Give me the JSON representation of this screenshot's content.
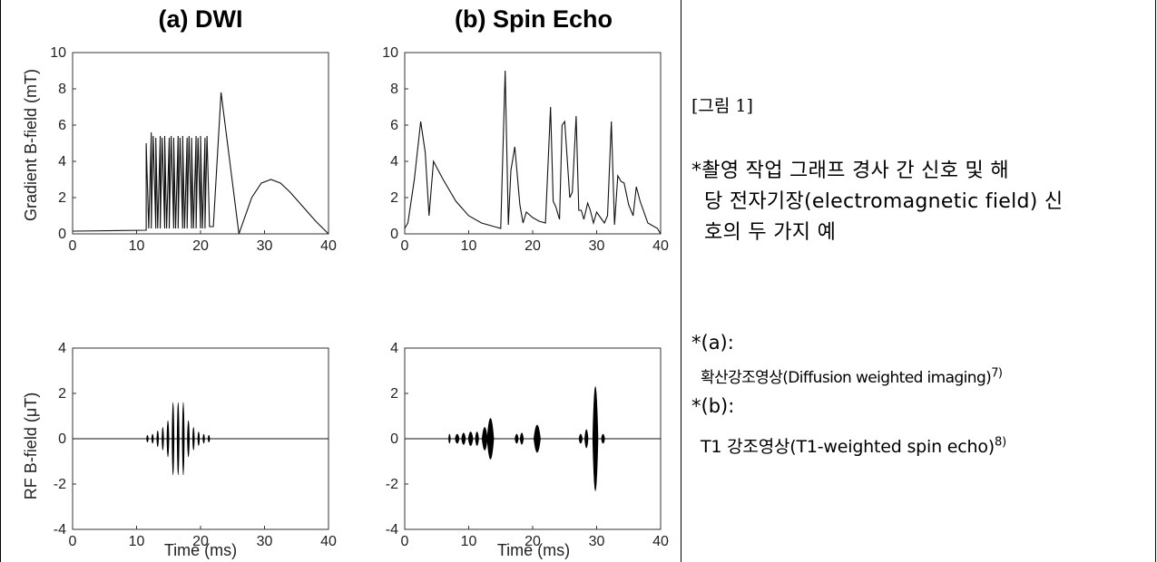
{
  "figure": {
    "label": "[그림 1]",
    "caption_line1": "*촬영 작업 그래프 경사 간 신호 및 해",
    "caption_line2": "당 전자기장(electromagnetic field) 신",
    "caption_line3": "호의 두 가지 예",
    "note_a_label": "*(a):",
    "note_a_text": "확산강조영상(Diffusion weighted imaging)",
    "note_a_ref": "7)",
    "note_b_label": "*(b):",
    "note_b_text": "T1 강조영상(T1-weighted spin echo)",
    "note_b_ref": "8)"
  },
  "chart_data": [
    {
      "type": "line",
      "title": "(a)  DWI",
      "ylabel": "Gradient B-field (mT)",
      "xlabel": "",
      "xlim": [
        0,
        40
      ],
      "ylim": [
        0,
        10
      ],
      "xticks": [
        "0",
        "10",
        "20",
        "30",
        "40"
      ],
      "yticks": [
        "0",
        "2",
        "4",
        "6",
        "8",
        "10"
      ],
      "series": [
        {
          "x": [
            0,
            11.5,
            11.5,
            11.9,
            12.3,
            12.3,
            12.6,
            13.0,
            13.0,
            13.3,
            13.7,
            13.7,
            14.0,
            14.4,
            14.4,
            14.7,
            15.1,
            15.1,
            15.4,
            15.8,
            15.8,
            16.1,
            16.5,
            16.5,
            16.8,
            17.2,
            17.2,
            17.5,
            17.9,
            17.9,
            18.2,
            18.6,
            18.6,
            18.9,
            19.3,
            19.3,
            19.6,
            20.0,
            20.0,
            20.3,
            20.7,
            20.7,
            21.0,
            21.4,
            22.0,
            23.2,
            26.0,
            28.0,
            29.5,
            31.0,
            32.5,
            34.0,
            36.0,
            38.0,
            40.0
          ],
          "y": [
            0.15,
            0.2,
            5.0,
            0.3,
            5.6,
            0.3,
            5.4,
            0.3,
            5.3,
            0.3,
            5.4,
            0.3,
            5.3,
            0.3,
            5.4,
            0.3,
            5.3,
            0.3,
            5.4,
            0.3,
            5.3,
            0.3,
            5.4,
            0.3,
            5.3,
            0.3,
            5.4,
            0.3,
            5.3,
            0.3,
            5.4,
            0.3,
            5.3,
            0.3,
            5.4,
            0.3,
            5.3,
            0.3,
            5.4,
            0.3,
            5.3,
            0.3,
            5.4,
            0.4,
            0.4,
            7.8,
            0.0,
            2.0,
            2.8,
            3.0,
            2.8,
            2.3,
            1.5,
            0.7,
            0.0
          ]
        }
      ]
    },
    {
      "type": "line",
      "title": "(b)  Spin Echo",
      "ylabel": "",
      "xlabel": "",
      "xlim": [
        0,
        40
      ],
      "ylim": [
        0,
        10
      ],
      "xticks": [
        "0",
        "10",
        "20",
        "30",
        "40"
      ],
      "yticks": [
        "0",
        "2",
        "4",
        "6",
        "8",
        "10"
      ],
      "series": [
        {
          "x": [
            0,
            0.5,
            1.5,
            2.5,
            3.2,
            3.8,
            4.5,
            6,
            8,
            10,
            12,
            14,
            15,
            15.7,
            16.2,
            16.6,
            17.2,
            18,
            18.5,
            19,
            20,
            21,
            22,
            22.8,
            23.2,
            23.6,
            24.2,
            24.6,
            25,
            25.8,
            26.2,
            26.8,
            27.2,
            27.6,
            28,
            28.6,
            29,
            29.5,
            30,
            30.6,
            31.2,
            31.7,
            32.3,
            32.8,
            33.3,
            33.8,
            34.3,
            35,
            35.7,
            36.2,
            36.8,
            38,
            39.5,
            40
          ],
          "y": [
            0.3,
            0.6,
            3.0,
            6.2,
            4.5,
            1.0,
            4.0,
            3.0,
            1.8,
            1.0,
            0.6,
            0.4,
            0.3,
            9.0,
            0.5,
            3.5,
            4.8,
            1.6,
            0.6,
            1.2,
            0.9,
            0.7,
            0.6,
            7.0,
            1.8,
            1.5,
            0.8,
            6.0,
            6.2,
            2.0,
            2.3,
            6.5,
            1.3,
            1.3,
            0.8,
            1.7,
            1.3,
            0.6,
            1.2,
            0.9,
            0.6,
            1.0,
            6.2,
            0.5,
            3.2,
            2.9,
            2.8,
            1.6,
            1.0,
            2.6,
            1.8,
            0.6,
            0.3,
            0.0
          ]
        }
      ]
    },
    {
      "type": "line",
      "title": "",
      "ylabel": "RF B-field (μT)",
      "xlabel": "Time (ms)",
      "xlim": [
        0,
        40
      ],
      "ylim": [
        -4,
        4
      ],
      "xticks": [
        "0",
        "10",
        "20",
        "30",
        "40"
      ],
      "yticks": [
        "-4",
        "-2",
        "0",
        "2",
        "4"
      ],
      "pulses": [
        {
          "center": 11.7,
          "amp": 0.15,
          "width": 0.25
        },
        {
          "center": 12.5,
          "amp": 0.2,
          "width": 0.25
        },
        {
          "center": 13.3,
          "amp": 0.35,
          "width": 0.25
        },
        {
          "center": 14.1,
          "amp": 0.5,
          "width": 0.25
        },
        {
          "center": 14.9,
          "amp": 0.8,
          "width": 0.3
        },
        {
          "center": 15.7,
          "amp": 1.6,
          "width": 0.3
        },
        {
          "center": 16.5,
          "amp": 1.6,
          "width": 0.3
        },
        {
          "center": 17.3,
          "amp": 1.6,
          "width": 0.3
        },
        {
          "center": 18.1,
          "amp": 0.8,
          "width": 0.3
        },
        {
          "center": 18.9,
          "amp": 0.5,
          "width": 0.25
        },
        {
          "center": 19.7,
          "amp": 0.3,
          "width": 0.25
        },
        {
          "center": 20.5,
          "amp": 0.2,
          "width": 0.25
        },
        {
          "center": 21.3,
          "amp": 0.15,
          "width": 0.25
        }
      ]
    },
    {
      "type": "line",
      "title": "",
      "ylabel": "",
      "xlabel": "Time (ms)",
      "xlim": [
        0,
        40
      ],
      "ylim": [
        -4,
        4
      ],
      "xticks": [
        "0",
        "10",
        "20",
        "30",
        "40"
      ],
      "yticks": [
        "-4",
        "-2",
        "0",
        "2",
        "4"
      ],
      "pulses": [
        {
          "center": 7.0,
          "amp": 0.2,
          "width": 0.25
        },
        {
          "center": 8.2,
          "amp": 0.2,
          "width": 0.6
        },
        {
          "center": 9.2,
          "amp": 0.25,
          "width": 0.6
        },
        {
          "center": 10.3,
          "amp": 0.3,
          "width": 0.7
        },
        {
          "center": 11.3,
          "amp": 0.3,
          "width": 0.5
        },
        {
          "center": 12.5,
          "amp": 0.5,
          "width": 0.8
        },
        {
          "center": 13.4,
          "amp": 0.9,
          "width": 1.0
        },
        {
          "center": 17.5,
          "amp": 0.2,
          "width": 0.5
        },
        {
          "center": 18.3,
          "amp": 0.25,
          "width": 0.5
        },
        {
          "center": 20.7,
          "amp": 0.6,
          "width": 1.0
        },
        {
          "center": 27.5,
          "amp": 0.2,
          "width": 0.5
        },
        {
          "center": 28.4,
          "amp": 0.4,
          "width": 0.5
        },
        {
          "center": 29.8,
          "amp": 2.3,
          "width": 0.8
        },
        {
          "center": 31.0,
          "amp": 0.2,
          "width": 0.5
        }
      ]
    }
  ]
}
